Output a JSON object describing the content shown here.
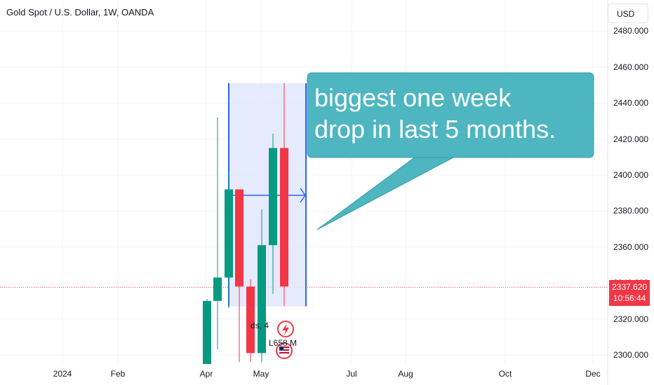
{
  "header": {
    "title": "Gold Spot / U.S. Dollar, 1W, OANDA",
    "currency_button": "USD"
  },
  "price_tag": {
    "price": "2337.620",
    "countdown": "10:56:44"
  },
  "annotation": {
    "text": "biggest one week\ndrop in last 5 months."
  },
  "indicator_labels": {
    "a": "ds, 4",
    "b": "L658 M"
  },
  "colors": {
    "up": "#089981",
    "down": "#f23645",
    "range_fill": "#e1e6fb",
    "range_border": "#2962ff",
    "callout": "#4db6c0",
    "price_line": "#f23645"
  },
  "chart_data": {
    "type": "candlestick",
    "title": "Gold Spot / U.S. Dollar, 1W, OANDA",
    "ylim": [
      2292,
      2486
    ],
    "yticks": [
      "2300.000",
      "2320.000",
      "2340.000",
      "2360.000",
      "2380.000",
      "2400.000",
      "2420.000",
      "2440.000",
      "2460.000",
      "2480.000"
    ],
    "x_labels": [
      "2024",
      "Feb",
      "Apr",
      "May",
      "Jul",
      "Aug",
      "Oct",
      "Dec"
    ],
    "last_price": 2337.62,
    "candles": [
      {
        "open": 2290,
        "high": 2331,
        "low": 2260,
        "close": 2330
      },
      {
        "open": 2330,
        "high": 2432,
        "low": 2303,
        "close": 2343
      },
      {
        "open": 2343,
        "high": 2402,
        "low": 2326,
        "close": 2392
      },
      {
        "open": 2392,
        "high": 2392,
        "low": 2296,
        "close": 2338
      },
      {
        "open": 2338,
        "high": 2342,
        "low": 2296,
        "close": 2301
      },
      {
        "open": 2301,
        "high": 2381,
        "low": 2296,
        "close": 2361
      },
      {
        "open": 2361,
        "high": 2423,
        "low": 2334,
        "close": 2415
      },
      {
        "open": 2415,
        "high": 2451,
        "low": 2327,
        "close": 2338
      }
    ],
    "measure_range": {
      "high": 2451,
      "low": 2327
    }
  }
}
